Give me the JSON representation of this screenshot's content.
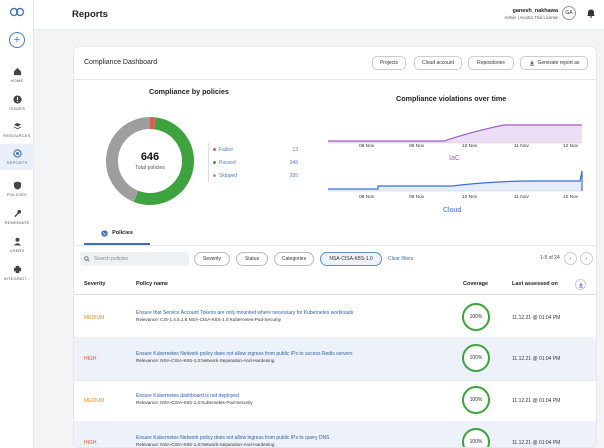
{
  "header": {
    "title": "Reports",
    "user_name": "ganesh_nakhawa",
    "user_role": "Admin | Acuitco Trial License",
    "avatar_initials": "GA"
  },
  "sidebar": {
    "items": [
      {
        "label": "HOME",
        "icon": "home-icon"
      },
      {
        "label": "ISSUES",
        "icon": "alert-icon"
      },
      {
        "label": "RESOURCES",
        "icon": "layers-icon"
      },
      {
        "label": "REPORTS",
        "icon": "reports-icon",
        "active": true
      },
      {
        "label": "POLICIES",
        "icon": "shield-icon"
      },
      {
        "label": "REMEDIATE",
        "icon": "wrench-icon"
      },
      {
        "label": "USERS",
        "icon": "users-icon"
      },
      {
        "label": "INTEGRATI...",
        "icon": "integrations-icon"
      }
    ]
  },
  "dashboard": {
    "title": "Compliance Dashboard",
    "buttons": [
      "Projects",
      "Cloud account",
      "Repositories",
      "Generate report as"
    ]
  },
  "compliance": {
    "title": "Compliance by policies",
    "total": "646",
    "total_label": "Total policies",
    "legend": [
      {
        "label": "Failed",
        "count": "13",
        "color": "#e05a4e"
      },
      {
        "label": "Passed",
        "count": "348",
        "color": "#3ea23e"
      },
      {
        "label": "Skipped",
        "count": "285",
        "color": "#9e9e9e"
      }
    ]
  },
  "violations": {
    "title": "Compliance violations over time",
    "dates": [
      "08 Nov",
      "09 Nov",
      "10 Nov",
      "11 Nov",
      "12 Nov"
    ],
    "iac_label": "IaC",
    "cloud_label": "Cloud",
    "iac_color": "#a05fc0",
    "cloud_color": "#3b6fd6"
  },
  "tabs": {
    "policies": "Policies"
  },
  "filters": {
    "search_placeholder": "Search policies",
    "severity": "Severity",
    "status": "Status",
    "categories": "Categories",
    "chip": "NSA-CISA-K8S-1.0",
    "clear": "Clear filters",
    "pager": "1-5 of 24"
  },
  "table": {
    "headers": {
      "severity": "Severity",
      "policy": "Policy name",
      "coverage": "Coverage",
      "assessed": "Last assessed on"
    },
    "rows": [
      {
        "severity": "MEDIUM",
        "severity_color": "#e08a2c",
        "name": "Ensure that Service Account Tokens are only mounted where necessary for Kubernetes workloads",
        "relevance": "Relevance: CIS-1.4.5.1.6 NSA-CISA-K8S-1.0:Kubernetes-Pod-Security",
        "coverage": "100%",
        "assessed": "11.12.21 @ 01:04 PM"
      },
      {
        "severity": "HIGH",
        "severity_color": "#e0542c",
        "name": "Ensure Kubernetes Network policy does not allow ingress from public IPs to access Redis servers",
        "relevance": "Relevance: NSA-CISA-K8S-1.0:Network-Separation-And-Hardening",
        "coverage": "100%",
        "assessed": "11.12.21 @ 01:04 PM"
      },
      {
        "severity": "MEDIUM",
        "severity_color": "#e08a2c",
        "name": "Ensure Kubernetes dashboard is not deployed",
        "relevance": "Relevance: NSA-CISA-K8S-1.0:Kubernetes-Pod-Security",
        "coverage": "100%",
        "assessed": "11.12.21 @ 01:04 PM"
      },
      {
        "severity": "HIGH",
        "severity_color": "#e0542c",
        "name": "Ensure Kubernetes Network policy does not allow ingress from public IPs to query DNS",
        "relevance": "Relevance: NSA-CISA-K8S-1.0:Network-Separation-And-Hardening",
        "coverage": "100%",
        "assessed": "11.12.21 @ 01:04 PM"
      }
    ]
  }
}
